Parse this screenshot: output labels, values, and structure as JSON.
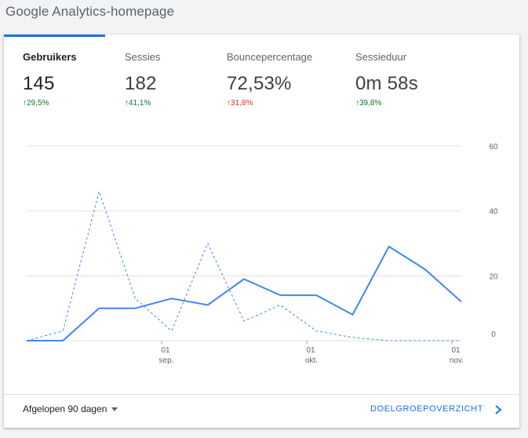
{
  "page": {
    "title": "Google Analytics-homepage"
  },
  "metrics": [
    {
      "label": "Gebruikers",
      "value": "145",
      "change": "29,5%",
      "direction": "up",
      "sentiment": "positive"
    },
    {
      "label": "Sessies",
      "value": "182",
      "change": "41,1%",
      "direction": "up",
      "sentiment": "positive"
    },
    {
      "label": "Bouncepercentage",
      "value": "72,53%",
      "change": "31,8%",
      "direction": "up",
      "sentiment": "negative"
    },
    {
      "label": "Sessieduur",
      "value": "0m 58s",
      "change": "39,8%",
      "direction": "up",
      "sentiment": "positive"
    }
  ],
  "chart_data": {
    "type": "line",
    "x_tick_labels": [
      {
        "day": "01",
        "month": "sep."
      },
      {
        "day": "01",
        "month": "okt."
      },
      {
        "day": "01",
        "month": "nov."
      }
    ],
    "y_ticks": [
      "60",
      "40",
      "20",
      "0"
    ],
    "ylim": [
      0,
      60
    ],
    "y_axis_side": "right",
    "grid": true,
    "series": [
      {
        "style": "solid",
        "color": "#4285f4",
        "values": [
          0,
          0,
          10,
          10,
          13,
          11,
          19,
          14,
          14,
          8,
          29,
          22,
          12
        ]
      },
      {
        "style": "dashed",
        "color": "#4285f4",
        "values": [
          0,
          3,
          46,
          13,
          3,
          30,
          6,
          11,
          3,
          1,
          0,
          0,
          0
        ]
      }
    ]
  },
  "footer": {
    "range_label": "Afgelopen 90 dagen",
    "report_link": "DOELGROEPOVERZICHT"
  },
  "colors": {
    "accent": "#1a73e8",
    "positive": "#137333",
    "negative": "#d93025"
  }
}
